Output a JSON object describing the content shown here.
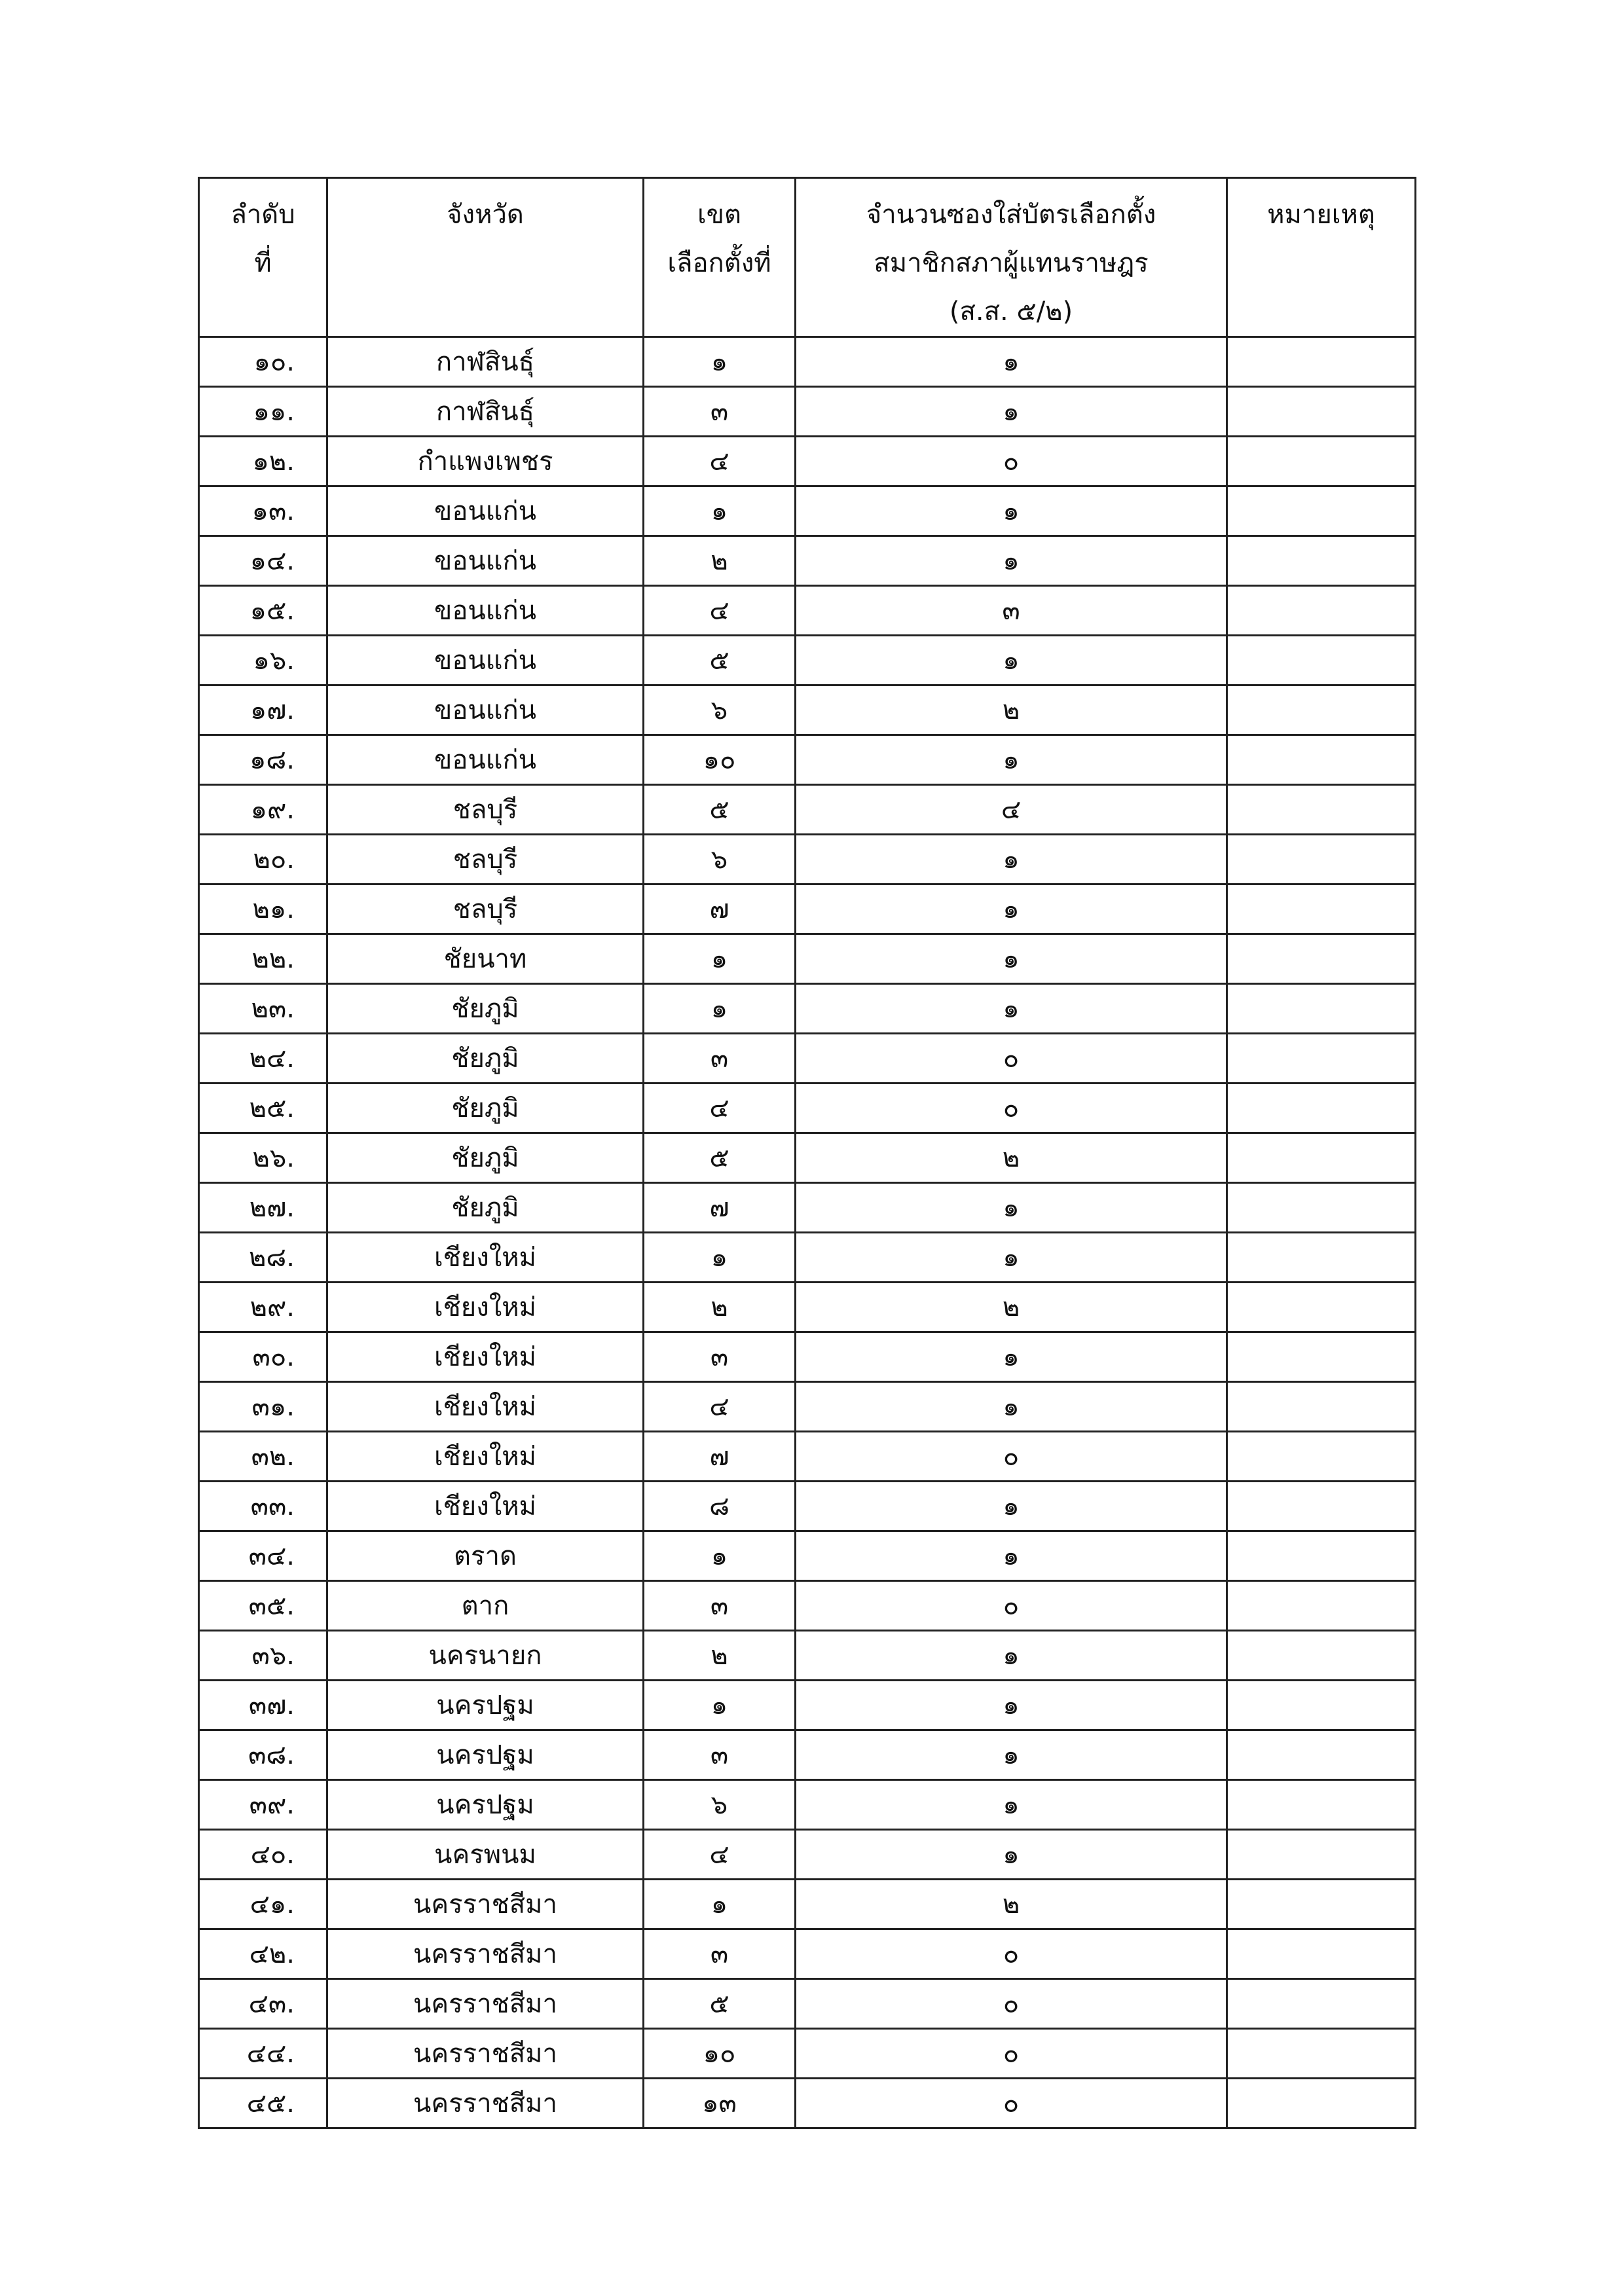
{
  "headers": {
    "no": [
      "ลำดับ",
      "ที่"
    ],
    "province": "จังหวัด",
    "district": [
      "เขต",
      "เลือกตั้งที่"
    ],
    "envelopes": [
      "จำนวนซองใส่บัตรเลือกตั้ง",
      "สมาชิกสภาผู้แทนราษฎร",
      "(ส.ส. ๕/๒)"
    ],
    "remark": "หมายเหตุ"
  },
  "rows": [
    [
      "๑๐.",
      "กาฬสินธุ์",
      "๑",
      "๑",
      ""
    ],
    [
      "๑๑.",
      "กาฬสินธุ์",
      "๓",
      "๑",
      ""
    ],
    [
      "๑๒.",
      "กำแพงเพชร",
      "๔",
      "๐",
      ""
    ],
    [
      "๑๓.",
      "ขอนแก่น",
      "๑",
      "๑",
      ""
    ],
    [
      "๑๔.",
      "ขอนแก่น",
      "๒",
      "๑",
      ""
    ],
    [
      "๑๕.",
      "ขอนแก่น",
      "๔",
      "๓",
      ""
    ],
    [
      "๑๖.",
      "ขอนแก่น",
      "๕",
      "๑",
      ""
    ],
    [
      "๑๗.",
      "ขอนแก่น",
      "๖",
      "๒",
      ""
    ],
    [
      "๑๘.",
      "ขอนแก่น",
      "๑๐",
      "๑",
      ""
    ],
    [
      "๑๙.",
      "ชลบุรี",
      "๕",
      "๔",
      ""
    ],
    [
      "๒๐.",
      "ชลบุรี",
      "๖",
      "๑",
      ""
    ],
    [
      "๒๑.",
      "ชลบุรี",
      "๗",
      "๑",
      ""
    ],
    [
      "๒๒.",
      "ชัยนาท",
      "๑",
      "๑",
      ""
    ],
    [
      "๒๓.",
      "ชัยภูมิ",
      "๑",
      "๑",
      ""
    ],
    [
      "๒๔.",
      "ชัยภูมิ",
      "๓",
      "๐",
      ""
    ],
    [
      "๒๕.",
      "ชัยภูมิ",
      "๔",
      "๐",
      ""
    ],
    [
      "๒๖.",
      "ชัยภูมิ",
      "๕",
      "๒",
      ""
    ],
    [
      "๒๗.",
      "ชัยภูมิ",
      "๗",
      "๑",
      ""
    ],
    [
      "๒๘.",
      "เชียงใหม่",
      "๑",
      "๑",
      ""
    ],
    [
      "๒๙.",
      "เชียงใหม่",
      "๒",
      "๒",
      ""
    ],
    [
      "๓๐.",
      "เชียงใหม่",
      "๓",
      "๑",
      ""
    ],
    [
      "๓๑.",
      "เชียงใหม่",
      "๔",
      "๑",
      ""
    ],
    [
      "๓๒.",
      "เชียงใหม่",
      "๗",
      "๐",
      ""
    ],
    [
      "๓๓.",
      "เชียงใหม่",
      "๘",
      "๑",
      ""
    ],
    [
      "๓๔.",
      "ตราด",
      "๑",
      "๑",
      ""
    ],
    [
      "๓๕.",
      "ตาก",
      "๓",
      "๐",
      ""
    ],
    [
      "๓๖.",
      "นครนายก",
      "๒",
      "๑",
      ""
    ],
    [
      "๓๗.",
      "นครปฐม",
      "๑",
      "๑",
      ""
    ],
    [
      "๓๘.",
      "นครปฐม",
      "๓",
      "๑",
      ""
    ],
    [
      "๓๙.",
      "นครปฐม",
      "๖",
      "๑",
      ""
    ],
    [
      "๔๐.",
      "นครพนม",
      "๔",
      "๑",
      ""
    ],
    [
      "๔๑.",
      "นครราชสีมา",
      "๑",
      "๒",
      ""
    ],
    [
      "๔๒.",
      "นครราชสีมา",
      "๓",
      "๐",
      ""
    ],
    [
      "๔๓.",
      "นครราชสีมา",
      "๕",
      "๐",
      ""
    ],
    [
      "๔๔.",
      "นครราชสีมา",
      "๑๐",
      "๐",
      ""
    ],
    [
      "๔๕.",
      "นครราชสีมา",
      "๑๓",
      "๐",
      ""
    ]
  ]
}
